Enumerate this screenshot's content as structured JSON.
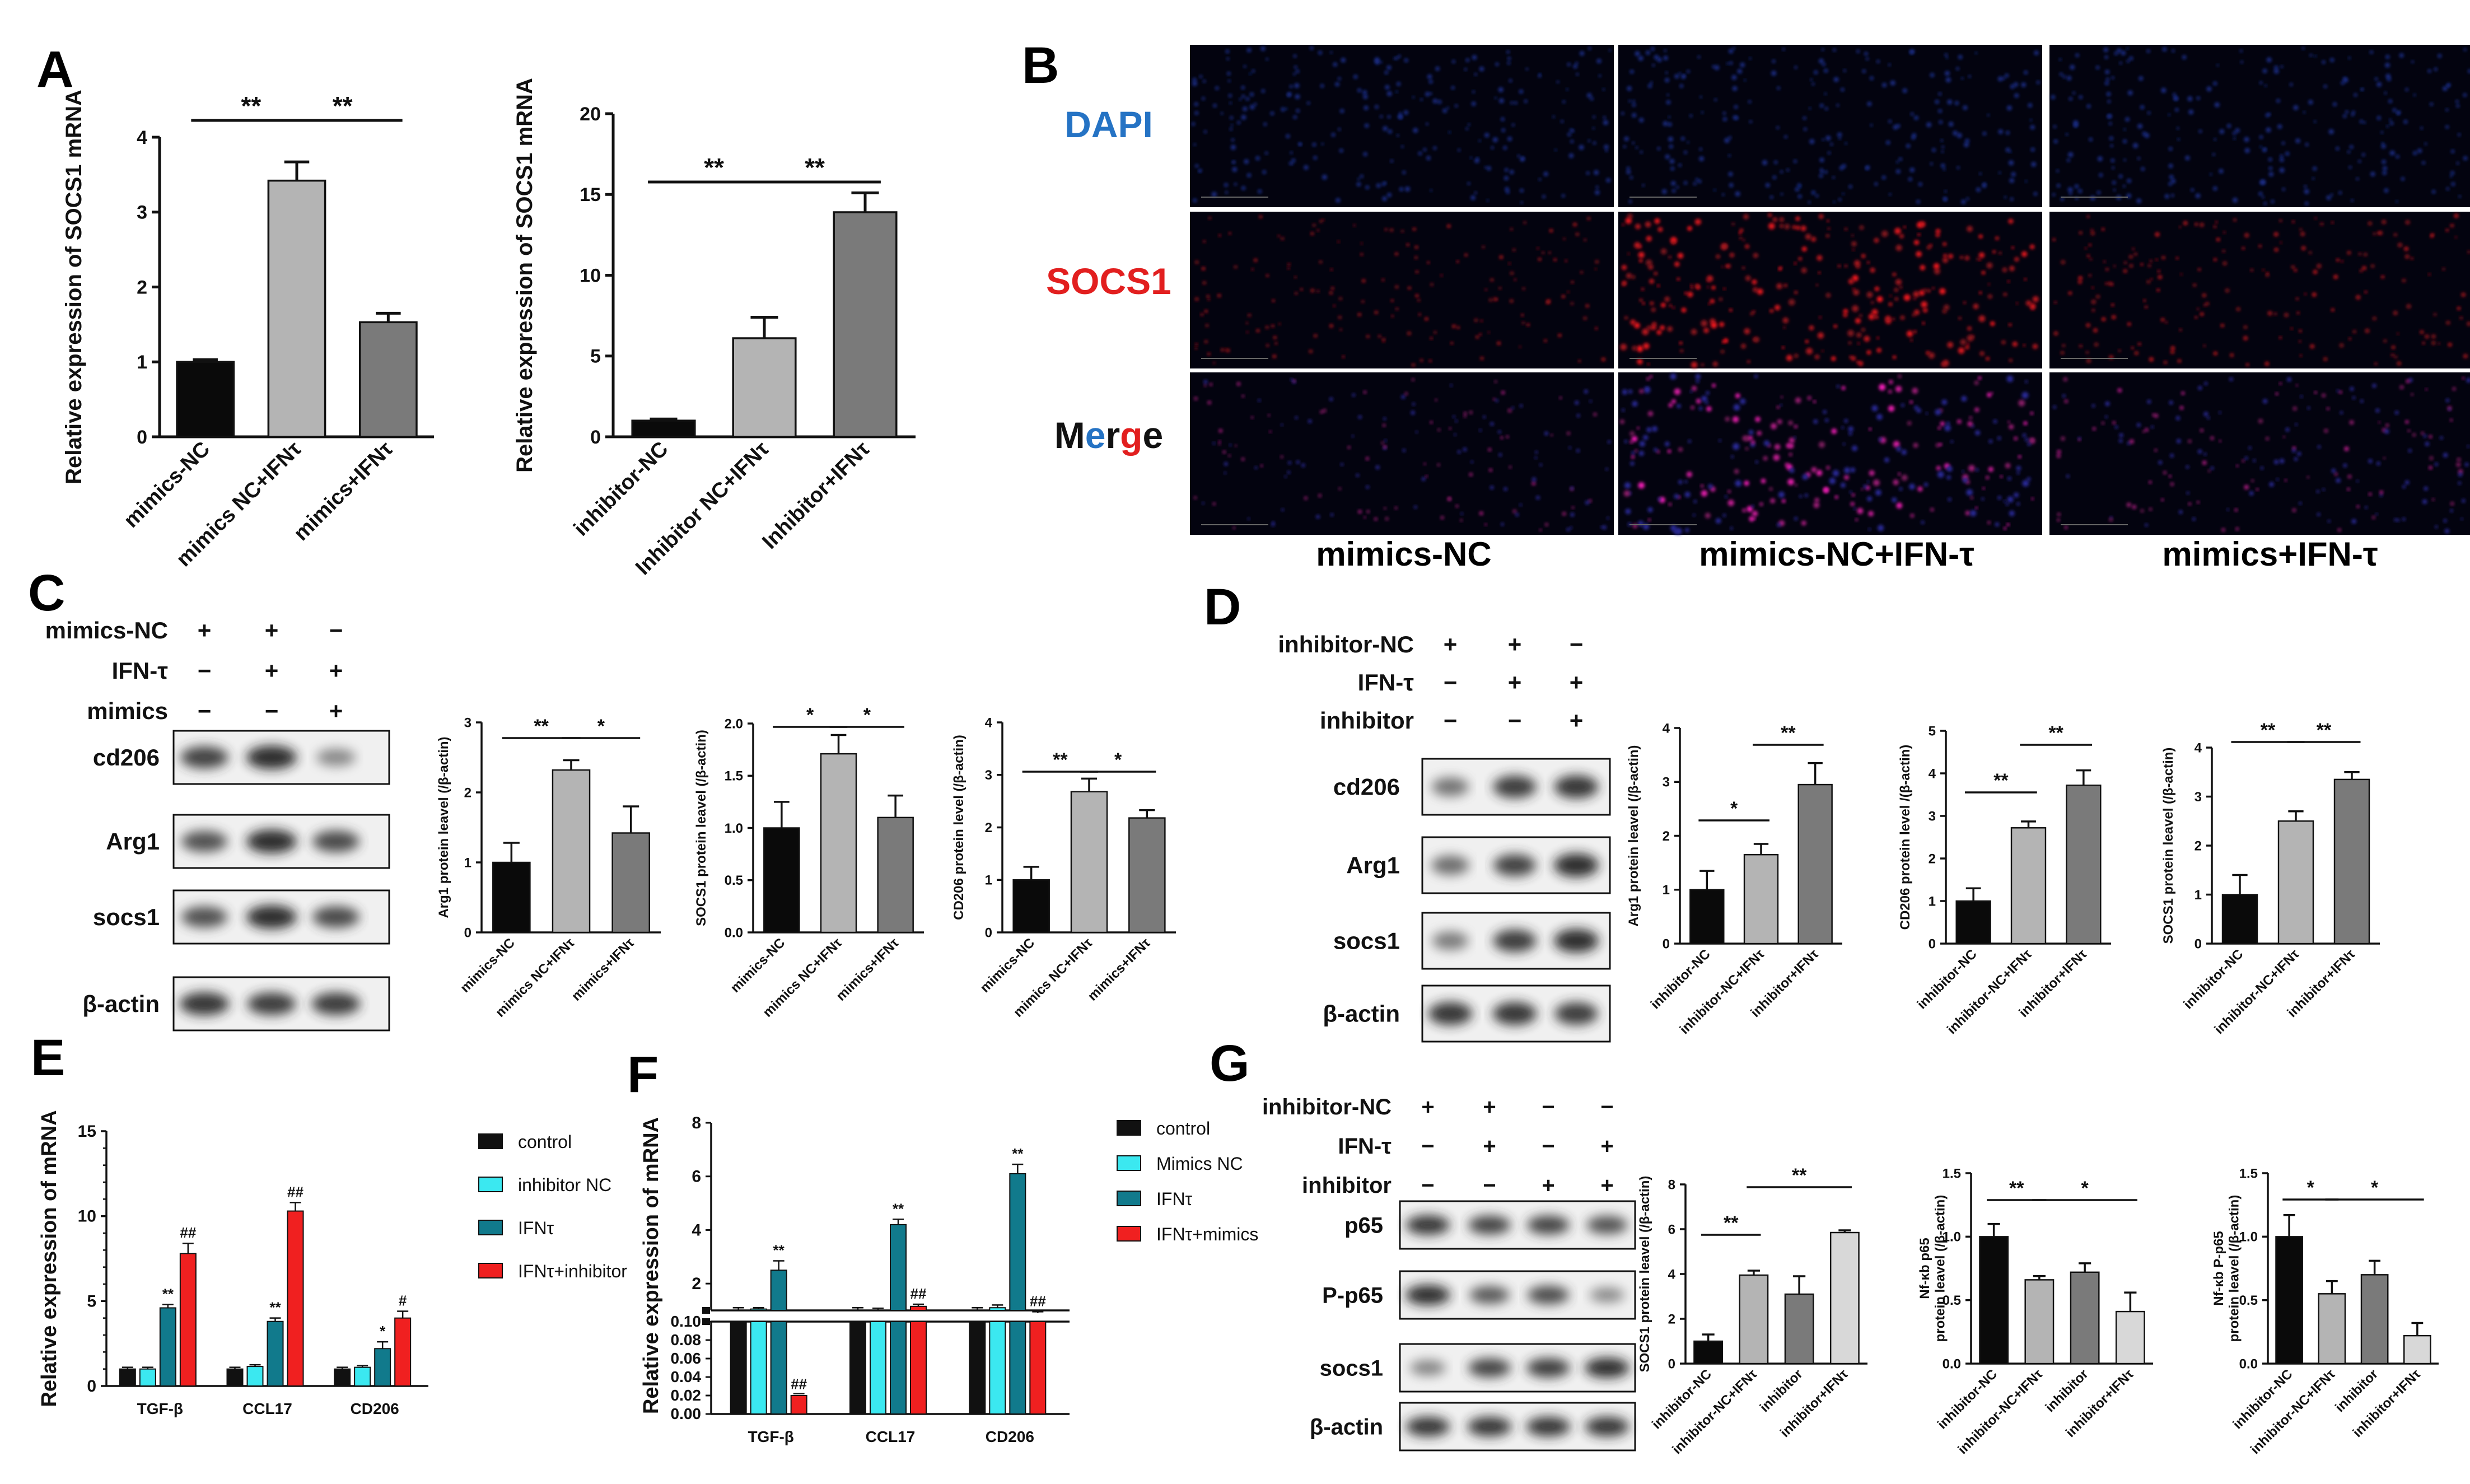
{
  "panel_labels": {
    "A": "A",
    "B": "B",
    "C": "C",
    "D": "D",
    "E": "E",
    "F": "F",
    "G": "G"
  },
  "chart_data": [
    {
      "id": "A1",
      "type": "bar",
      "ylabel": "Relative expression of SOCS1 mRNA",
      "ylim": [
        0,
        4
      ],
      "yticks": [
        0,
        1,
        2,
        3,
        4
      ],
      "categories": [
        "mimics-NC",
        "mimics NC+IFNτ",
        "mimics+IFNτ"
      ],
      "values": [
        1.0,
        3.42,
        1.53
      ],
      "errors": [
        0.03,
        0.25,
        0.12
      ],
      "colors": [
        "#0a0a0a",
        "#b4b4b4",
        "#7a7a7a"
      ],
      "sig": [
        {
          "from": 0,
          "to": 1,
          "label": "**"
        },
        {
          "from": 1,
          "to": 2,
          "label": "**"
        }
      ]
    },
    {
      "id": "A2",
      "type": "bar",
      "ylabel": "Relative expression of SOCS1 mRNA",
      "ylim": [
        0,
        20
      ],
      "yticks": [
        0,
        5,
        10,
        15,
        20
      ],
      "categories": [
        "inhibitor-NC",
        "Inhibitor NC+IFNτ",
        "Inhibitor+IFNτ"
      ],
      "values": [
        1.0,
        6.1,
        13.9
      ],
      "errors": [
        0.1,
        1.3,
        1.2
      ],
      "colors": [
        "#0a0a0a",
        "#b4b4b4",
        "#7a7a7a"
      ],
      "sig": [
        {
          "from": 0,
          "to": 1,
          "label": "**"
        },
        {
          "from": 1,
          "to": 2,
          "label": "**"
        }
      ]
    },
    {
      "id": "C1",
      "type": "bar",
      "ylabel": "Arg1 protein leavel (/β-actin)",
      "ylim": [
        0,
        3
      ],
      "yticks": [
        0,
        1,
        2,
        3
      ],
      "categories": [
        "mimics-NC",
        "mimics NC+IFNτ",
        "mimics+IFNτ"
      ],
      "values": [
        1.0,
        2.32,
        1.42
      ],
      "errors": [
        0.28,
        0.14,
        0.38
      ],
      "colors": [
        "#0a0a0a",
        "#b4b4b4",
        "#7a7a7a"
      ],
      "sig": [
        {
          "from": 0,
          "to": 1,
          "label": "**"
        },
        {
          "from": 1,
          "to": 2,
          "label": "*"
        }
      ]
    },
    {
      "id": "C2",
      "type": "bar",
      "ylabel": "SOCS1 protein leavel (/β-actin)",
      "ylim": [
        0,
        2
      ],
      "yticks": [
        "0.0",
        "0.5",
        "1.0",
        "1.5",
        "2.0"
      ],
      "categories": [
        "mimics-NC",
        "mimics NC+IFNτ",
        "mimics+IFNτ"
      ],
      "values": [
        1.0,
        1.71,
        1.1
      ],
      "errors": [
        0.25,
        0.18,
        0.21
      ],
      "colors": [
        "#0a0a0a",
        "#b4b4b4",
        "#7a7a7a"
      ],
      "sig": [
        {
          "from": 0,
          "to": 1,
          "label": "*"
        },
        {
          "from": 1,
          "to": 2,
          "label": "*"
        }
      ]
    },
    {
      "id": "C3",
      "type": "bar",
      "ylabel": "CD206 protein level (/β-actin)",
      "ylim": [
        0,
        4
      ],
      "yticks": [
        0,
        1,
        2,
        3,
        4
      ],
      "categories": [
        "mimics-NC",
        "mimics NC+IFNτ",
        "mimics+IFNτ"
      ],
      "values": [
        1.0,
        2.68,
        2.18
      ],
      "errors": [
        0.25,
        0.25,
        0.15
      ],
      "colors": [
        "#0a0a0a",
        "#b4b4b4",
        "#7a7a7a"
      ],
      "sig": [
        {
          "from": 0,
          "to": 1,
          "label": "**"
        },
        {
          "from": 1,
          "to": 2,
          "label": "*"
        }
      ]
    },
    {
      "id": "D1",
      "type": "bar",
      "ylabel": "Arg1 protein leavel (/β-actin)",
      "ylim": [
        0,
        4
      ],
      "yticks": [
        0,
        1,
        2,
        3,
        4
      ],
      "categories": [
        "inhibitor-NC",
        "inhibitor-NC+IFNτ",
        "inhibitor+IFNτ"
      ],
      "values": [
        1.0,
        1.65,
        2.95
      ],
      "errors": [
        0.35,
        0.2,
        0.4
      ],
      "colors": [
        "#0a0a0a",
        "#b4b4b4",
        "#7a7a7a"
      ],
      "sig": [
        {
          "from": 0,
          "to": 1,
          "label": "*"
        },
        {
          "from": 1,
          "to": 2,
          "label": "**"
        }
      ]
    },
    {
      "id": "D2",
      "type": "bar",
      "ylabel": "CD206 protein level /(β-actin)",
      "ylim": [
        0,
        5
      ],
      "yticks": [
        0,
        1,
        2,
        3,
        4,
        5
      ],
      "categories": [
        "inhibitor-NC",
        "inhibitor-NC+IFNτ",
        "inhibitor+IFNτ"
      ],
      "values": [
        1.0,
        2.72,
        3.72
      ],
      "errors": [
        0.3,
        0.15,
        0.35
      ],
      "colors": [
        "#0a0a0a",
        "#b4b4b4",
        "#7a7a7a"
      ],
      "sig": [
        {
          "from": 0,
          "to": 1,
          "label": "**"
        },
        {
          "from": 1,
          "to": 2,
          "label": "**"
        }
      ]
    },
    {
      "id": "D3",
      "type": "bar",
      "ylabel": "SOCS1 protein leavel (/β-actin)",
      "ylim": [
        0,
        4
      ],
      "yticks": [
        0,
        1,
        2,
        3,
        4
      ],
      "categories": [
        "inhibitor-NC",
        "inhibitor-NC+IFNτ",
        "inhibitor+IFNτ"
      ],
      "values": [
        1.0,
        2.5,
        3.35
      ],
      "errors": [
        0.4,
        0.2,
        0.15
      ],
      "colors": [
        "#0a0a0a",
        "#b4b4b4",
        "#7a7a7a"
      ],
      "sig": [
        {
          "from": 0,
          "to": 1,
          "label": "**"
        },
        {
          "from": 1,
          "to": 2,
          "label": "**"
        }
      ]
    },
    {
      "id": "E",
      "type": "bar",
      "ylabel": "Relative expression of mRNA",
      "ylim": [
        0,
        15
      ],
      "yticks": [
        0,
        5,
        10,
        15
      ],
      "categories": [
        "TGF-β",
        "CCL17",
        "CD206"
      ],
      "series": [
        {
          "name": "control",
          "color": "#111111",
          "values": [
            1.0,
            1.0,
            1.0
          ],
          "errors": [
            0.1,
            0.1,
            0.1
          ]
        },
        {
          "name": "inhibitor NC",
          "color": "#3be8f0",
          "values": [
            1.0,
            1.15,
            1.1
          ],
          "errors": [
            0.1,
            0.1,
            0.1
          ]
        },
        {
          "name": "IFNτ",
          "color": "#117a8c",
          "values": [
            4.6,
            3.8,
            2.2
          ],
          "errors": [
            0.2,
            0.2,
            0.4
          ]
        },
        {
          "name": "IFNτ+inhibitor",
          "color": "#f02020",
          "values": [
            7.8,
            10.3,
            4.0
          ],
          "errors": [
            0.6,
            0.5,
            0.4
          ]
        }
      ],
      "annotations": [
        {
          "cat": 0,
          "series": 2,
          "label": "**"
        },
        {
          "cat": 0,
          "series": 3,
          "label": "##"
        },
        {
          "cat": 1,
          "series": 2,
          "label": "**"
        },
        {
          "cat": 1,
          "series": 3,
          "label": "##"
        },
        {
          "cat": 2,
          "series": 2,
          "label": "*"
        },
        {
          "cat": 2,
          "series": 3,
          "label": "#"
        }
      ]
    },
    {
      "id": "F",
      "type": "bar",
      "ylabel": "Relative expression of mRNA",
      "ylim_upper": [
        1,
        8
      ],
      "ylim_lower": [
        0,
        0.1
      ],
      "yticks_upper": [
        2,
        4,
        6,
        8
      ],
      "yticks_lower": [
        "0.00",
        "0.02",
        "0.04",
        "0.06",
        "0.08",
        "0.10"
      ],
      "categories": [
        "TGF-β",
        "CCL17",
        "CD206"
      ],
      "series": [
        {
          "name": "control",
          "color": "#111111",
          "values": [
            1.0,
            1.0,
            1.0
          ],
          "errors": [
            0.1,
            0.1,
            0.1
          ]
        },
        {
          "name": "Mimics NC",
          "color": "#3be8f0",
          "values": [
            1.05,
            1.0,
            1.1
          ],
          "errors": [
            0.05,
            0.08,
            0.1
          ]
        },
        {
          "name": "IFNτ",
          "color": "#117a8c",
          "values": [
            2.5,
            4.2,
            6.1
          ],
          "errors": [
            0.35,
            0.2,
            0.35
          ]
        },
        {
          "name": "IFNτ+mimics",
          "color": "#f02020",
          "values": [
            0.02,
            1.15,
            0.9
          ],
          "errors": [
            0.002,
            0.08,
            0.05
          ]
        }
      ],
      "annotations": [
        {
          "cat": 0,
          "series": 2,
          "label": "**"
        },
        {
          "cat": 0,
          "series": 3,
          "label": "##"
        },
        {
          "cat": 1,
          "series": 2,
          "label": "**"
        },
        {
          "cat": 1,
          "series": 3,
          "label": "##"
        },
        {
          "cat": 2,
          "series": 2,
          "label": "**"
        },
        {
          "cat": 2,
          "series": 3,
          "label": "##"
        }
      ]
    },
    {
      "id": "G1",
      "type": "bar",
      "ylabel": "SOCS1 protein leavel (/β-actin)",
      "ylim": [
        0,
        8
      ],
      "yticks": [
        0,
        2,
        4,
        6,
        8
      ],
      "categories": [
        "inhibitor-NC",
        "inhibitor-NC+IFNτ",
        "inhibitor",
        "inhibitor+IFNτ"
      ],
      "values": [
        1.0,
        3.95,
        3.1,
        5.85
      ],
      "errors": [
        0.3,
        0.2,
        0.8,
        0.1
      ],
      "colors": [
        "#0a0a0a",
        "#b4b4b4",
        "#7a7a7a",
        "#d8d8d8"
      ],
      "sig": [
        {
          "from": 0,
          "to": 1,
          "label": "**"
        },
        {
          "from": 1,
          "to": 3,
          "label": "**"
        }
      ]
    },
    {
      "id": "G2",
      "type": "bar",
      "ylabel": "Nf-κb p65 protein leavel (/β-actin)",
      "ylim": [
        0,
        1.5
      ],
      "yticks": [
        "0.0",
        "0.5",
        "1.0",
        "1.5"
      ],
      "categories": [
        "inhibitor-NC",
        "inhibitor-NC+IFNτ",
        "inhibitor",
        "inhibitor+IFNτ"
      ],
      "values": [
        1.0,
        0.66,
        0.72,
        0.41
      ],
      "errors": [
        0.1,
        0.03,
        0.07,
        0.15
      ],
      "colors": [
        "#0a0a0a",
        "#b4b4b4",
        "#7a7a7a",
        "#d8d8d8"
      ],
      "sig": [
        {
          "from": 0,
          "to": 1,
          "label": "**"
        },
        {
          "from": 1,
          "to": 3,
          "label": "*"
        }
      ]
    },
    {
      "id": "G3",
      "type": "bar",
      "ylabel": "Nf-κb P-p65 protein leavel (/β-actin)",
      "ylim": [
        0,
        1.5
      ],
      "yticks": [
        "0.0",
        "0.5",
        "1.0",
        "1.5"
      ],
      "categories": [
        "inhibitor-NC",
        "inhibitor-NC+IFNτ",
        "inhibitor",
        "inhibitor+IFNτ"
      ],
      "values": [
        1.0,
        0.55,
        0.7,
        0.22
      ],
      "errors": [
        0.17,
        0.1,
        0.11,
        0.1
      ],
      "colors": [
        "#0a0a0a",
        "#b4b4b4",
        "#7a7a7a",
        "#d8d8d8"
      ],
      "sig": [
        {
          "from": 0,
          "to": 1,
          "label": "*"
        },
        {
          "from": 1,
          "to": 3,
          "label": "*"
        }
      ]
    }
  ],
  "panel_B": {
    "row_labels": [
      "DAPI",
      "SOCS1",
      "Merge"
    ],
    "merge_letters": [
      "M",
      "e",
      "r",
      "g",
      "e"
    ],
    "columns": [
      "mimics-NC",
      "mimics-NC+IFN-τ",
      "mimics+IFN-τ"
    ],
    "colors": {
      "dapi": "#2573c4",
      "socs1": "#e21f1f",
      "merge": "#111111"
    }
  },
  "panel_C_blot": {
    "treatments": [
      {
        "name": "mimics-NC",
        "signs": [
          "+",
          "+",
          "−"
        ]
      },
      {
        "name": "IFN-τ",
        "signs": [
          "−",
          "+",
          "+"
        ]
      },
      {
        "name": "mimics",
        "signs": [
          "−",
          "−",
          "+"
        ]
      }
    ],
    "bands": [
      {
        "name": "cd206",
        "intensity": [
          0.85,
          1.0,
          0.35
        ]
      },
      {
        "name": "Arg1",
        "intensity": [
          0.75,
          1.0,
          0.8
        ]
      },
      {
        "name": "socs1",
        "intensity": [
          0.75,
          1.0,
          0.8
        ]
      },
      {
        "name": "β-actin",
        "intensity": [
          0.95,
          0.9,
          0.9
        ]
      }
    ]
  },
  "panel_D_blot": {
    "treatments": [
      {
        "name": "inhibitor-NC",
        "signs": [
          "+",
          "+",
          "−"
        ]
      },
      {
        "name": "IFN-τ",
        "signs": [
          "−",
          "+",
          "+"
        ]
      },
      {
        "name": "inhibitor",
        "signs": [
          "−",
          "−",
          "+"
        ]
      }
    ],
    "bands": [
      {
        "name": "cd206",
        "intensity": [
          0.5,
          0.9,
          0.95
        ]
      },
      {
        "name": "Arg1",
        "intensity": [
          0.55,
          0.85,
          1.0
        ]
      },
      {
        "name": "socs1",
        "intensity": [
          0.45,
          0.9,
          1.0
        ]
      },
      {
        "name": "β-actin",
        "intensity": [
          0.95,
          0.95,
          0.9
        ]
      }
    ]
  },
  "panel_G_blot": {
    "treatments": [
      {
        "name": "inhibitor-NC",
        "signs": [
          "+",
          "+",
          "−",
          "−"
        ]
      },
      {
        "name": "IFN-τ",
        "signs": [
          "−",
          "+",
          "−",
          "+"
        ]
      },
      {
        "name": "inhibitor",
        "signs": [
          "−",
          "−",
          "+",
          "+"
        ]
      }
    ],
    "bands": [
      {
        "name": "p65",
        "intensity": [
          0.95,
          0.85,
          0.85,
          0.75
        ]
      },
      {
        "name": "P-p65",
        "intensity": [
          1.0,
          0.7,
          0.8,
          0.35
        ]
      },
      {
        "name": "socs1",
        "intensity": [
          0.4,
          0.85,
          0.9,
          1.0
        ]
      },
      {
        "name": "β-actin",
        "intensity": [
          0.95,
          0.95,
          0.95,
          0.95
        ]
      }
    ]
  }
}
